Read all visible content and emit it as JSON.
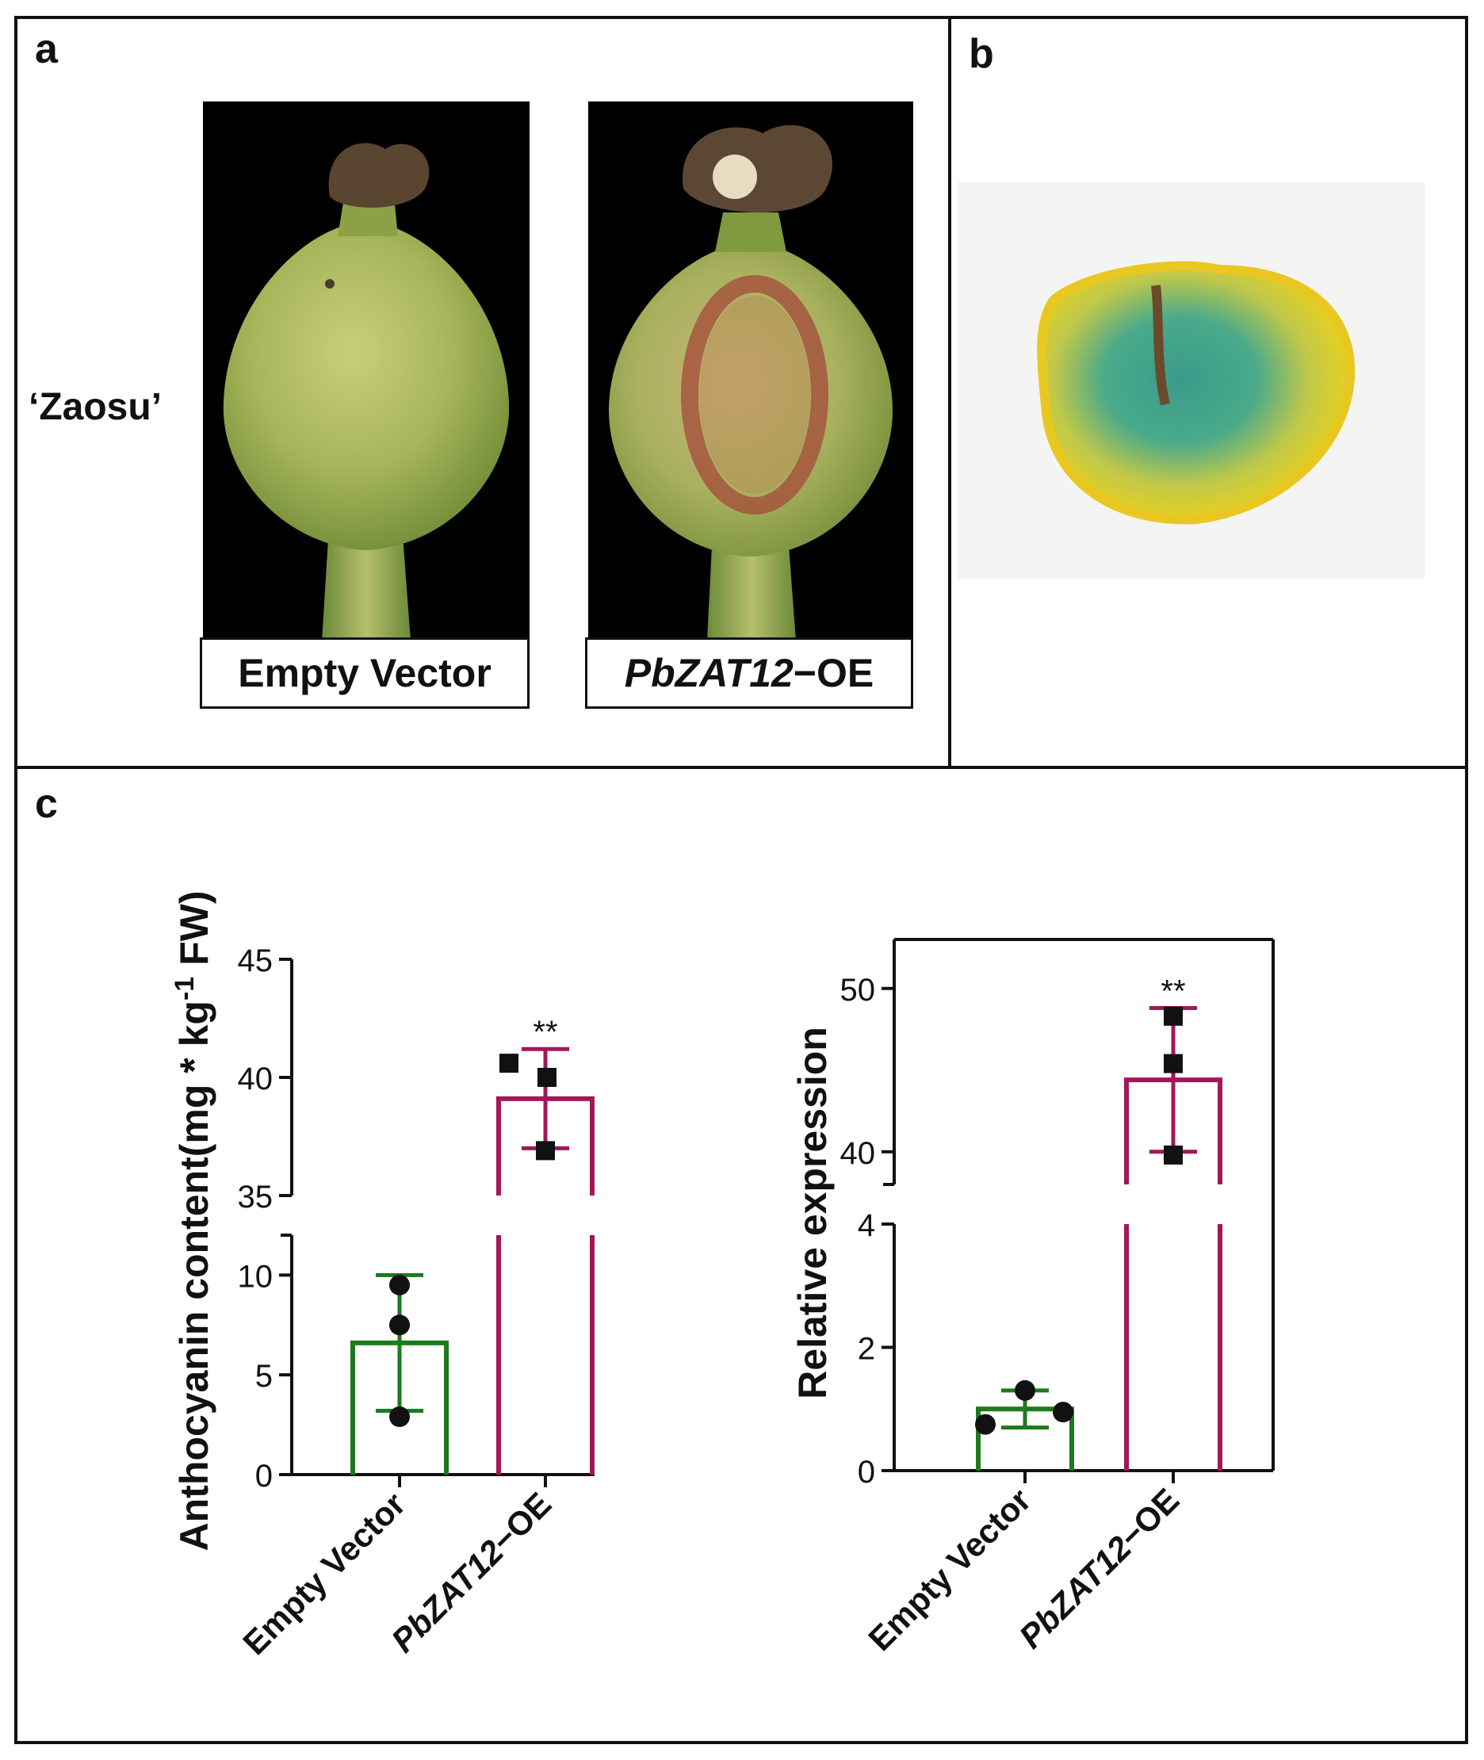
{
  "panels": {
    "a": {
      "letter": "a",
      "cultivar_label": "‘Zaosu’",
      "caption_left": "Empty Vector",
      "caption_right_italic": "PbZAT12",
      "caption_right_suffix": "−OE"
    },
    "b": {
      "letter": "b"
    },
    "c": {
      "letter": "c"
    }
  },
  "colors": {
    "empty_vector": "#1e7a1e",
    "pbzat12_oe": "#a3175a",
    "ink": "#111111"
  },
  "chart_data": [
    {
      "type": "bar",
      "ylabel": "Anthocyanin content(mg * kg",
      "ylabel_superscript": "-1",
      "ylabel_suffix": " FW)",
      "categories": [
        "Empty Vector",
        "PbZAT12−OE"
      ],
      "category_italic_part": [
        "",
        "PbZAT12"
      ],
      "values": [
        6.6,
        39.1
      ],
      "error": [
        3.4,
        2.1
      ],
      "points": [
        [
          9.5,
          7.5,
          2.9
        ],
        [
          40.6,
          40.0,
          36.9
        ]
      ],
      "point_markers": [
        "circle",
        "square"
      ],
      "significance": [
        "",
        "**"
      ],
      "axis_break": {
        "lower": [
          0,
          12
        ],
        "upper": [
          35,
          45
        ]
      },
      "yticks_lower": [
        "0",
        "5",
        "10"
      ],
      "yticks_upper": [
        "35",
        "40",
        "45"
      ]
    },
    {
      "type": "bar",
      "ylabel": "Relative expression",
      "categories": [
        "Empty Vector",
        "PbZAT12−OE"
      ],
      "category_italic_part": [
        "",
        "PbZAT12"
      ],
      "values": [
        1.0,
        44.4
      ],
      "error": [
        0.3,
        4.4
      ],
      "points": [
        [
          0.75,
          1.3,
          0.95
        ],
        [
          48.3,
          45.4,
          39.8
        ]
      ],
      "point_markers": [
        "circle",
        "square"
      ],
      "significance": [
        "",
        "**"
      ],
      "axis_break": {
        "lower": [
          0,
          4
        ],
        "upper": [
          38,
          53
        ]
      },
      "yticks_lower": [
        "0",
        "2",
        "4"
      ],
      "yticks_upper": [
        "40",
        "50"
      ]
    }
  ]
}
